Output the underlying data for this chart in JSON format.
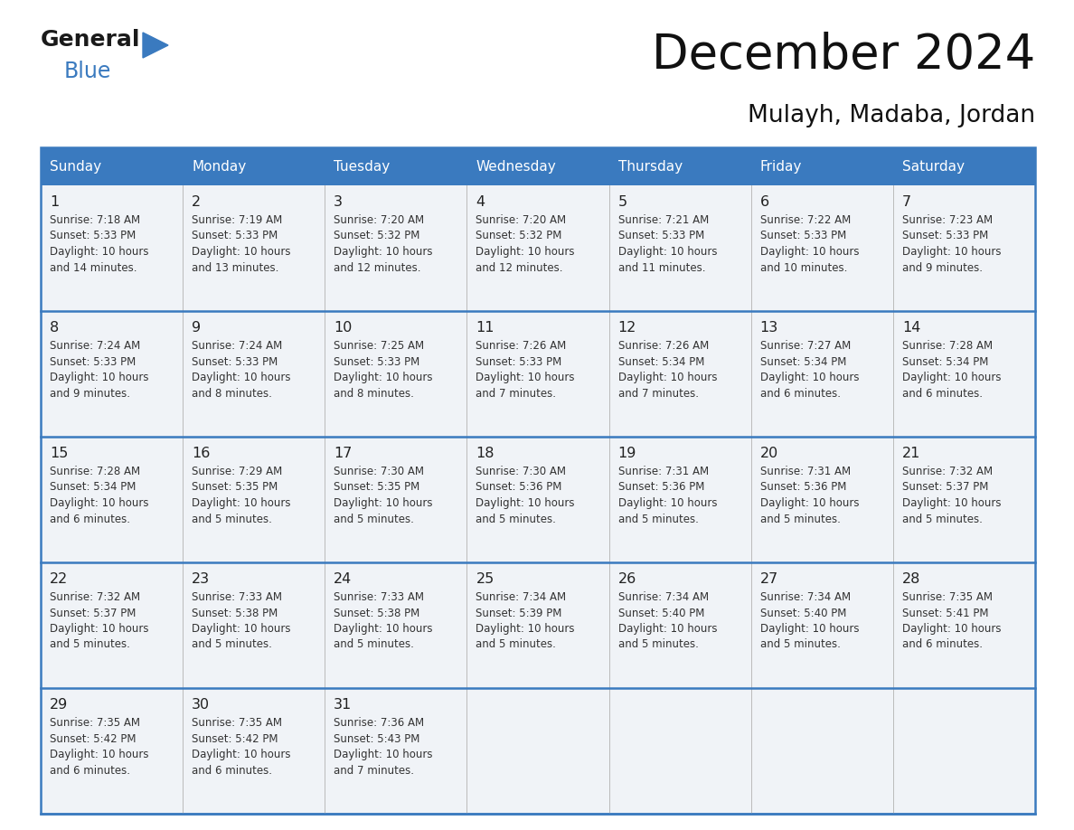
{
  "title": "December 2024",
  "subtitle": "Mulayh, Madaba, Jordan",
  "header_color": "#3a7abf",
  "header_text_color": "#ffffff",
  "border_color": "#3a7abf",
  "row_sep_color": "#3a7abf",
  "col_sep_color": "#bbbbbb",
  "cell_bg_even": "#f0f3f7",
  "cell_bg_odd": "#f0f3f7",
  "text_color": "#333333",
  "day_num_color": "#222222",
  "days_of_week": [
    "Sunday",
    "Monday",
    "Tuesday",
    "Wednesday",
    "Thursday",
    "Friday",
    "Saturday"
  ],
  "day_data": [
    {
      "day": 1,
      "col": 0,
      "row": 0,
      "sunrise": "7:18 AM",
      "sunset": "5:33 PM",
      "daylight_mins": "14"
    },
    {
      "day": 2,
      "col": 1,
      "row": 0,
      "sunrise": "7:19 AM",
      "sunset": "5:33 PM",
      "daylight_mins": "13"
    },
    {
      "day": 3,
      "col": 2,
      "row": 0,
      "sunrise": "7:20 AM",
      "sunset": "5:32 PM",
      "daylight_mins": "12"
    },
    {
      "day": 4,
      "col": 3,
      "row": 0,
      "sunrise": "7:20 AM",
      "sunset": "5:32 PM",
      "daylight_mins": "12"
    },
    {
      "day": 5,
      "col": 4,
      "row": 0,
      "sunrise": "7:21 AM",
      "sunset": "5:33 PM",
      "daylight_mins": "11"
    },
    {
      "day": 6,
      "col": 5,
      "row": 0,
      "sunrise": "7:22 AM",
      "sunset": "5:33 PM",
      "daylight_mins": "10"
    },
    {
      "day": 7,
      "col": 6,
      "row": 0,
      "sunrise": "7:23 AM",
      "sunset": "5:33 PM",
      "daylight_mins": "9"
    },
    {
      "day": 8,
      "col": 0,
      "row": 1,
      "sunrise": "7:24 AM",
      "sunset": "5:33 PM",
      "daylight_mins": "9"
    },
    {
      "day": 9,
      "col": 1,
      "row": 1,
      "sunrise": "7:24 AM",
      "sunset": "5:33 PM",
      "daylight_mins": "8"
    },
    {
      "day": 10,
      "col": 2,
      "row": 1,
      "sunrise": "7:25 AM",
      "sunset": "5:33 PM",
      "daylight_mins": "8"
    },
    {
      "day": 11,
      "col": 3,
      "row": 1,
      "sunrise": "7:26 AM",
      "sunset": "5:33 PM",
      "daylight_mins": "7"
    },
    {
      "day": 12,
      "col": 4,
      "row": 1,
      "sunrise": "7:26 AM",
      "sunset": "5:34 PM",
      "daylight_mins": "7"
    },
    {
      "day": 13,
      "col": 5,
      "row": 1,
      "sunrise": "7:27 AM",
      "sunset": "5:34 PM",
      "daylight_mins": "6"
    },
    {
      "day": 14,
      "col": 6,
      "row": 1,
      "sunrise": "7:28 AM",
      "sunset": "5:34 PM",
      "daylight_mins": "6"
    },
    {
      "day": 15,
      "col": 0,
      "row": 2,
      "sunrise": "7:28 AM",
      "sunset": "5:34 PM",
      "daylight_mins": "6"
    },
    {
      "day": 16,
      "col": 1,
      "row": 2,
      "sunrise": "7:29 AM",
      "sunset": "5:35 PM",
      "daylight_mins": "5"
    },
    {
      "day": 17,
      "col": 2,
      "row": 2,
      "sunrise": "7:30 AM",
      "sunset": "5:35 PM",
      "daylight_mins": "5"
    },
    {
      "day": 18,
      "col": 3,
      "row": 2,
      "sunrise": "7:30 AM",
      "sunset": "5:36 PM",
      "daylight_mins": "5"
    },
    {
      "day": 19,
      "col": 4,
      "row": 2,
      "sunrise": "7:31 AM",
      "sunset": "5:36 PM",
      "daylight_mins": "5"
    },
    {
      "day": 20,
      "col": 5,
      "row": 2,
      "sunrise": "7:31 AM",
      "sunset": "5:36 PM",
      "daylight_mins": "5"
    },
    {
      "day": 21,
      "col": 6,
      "row": 2,
      "sunrise": "7:32 AM",
      "sunset": "5:37 PM",
      "daylight_mins": "5"
    },
    {
      "day": 22,
      "col": 0,
      "row": 3,
      "sunrise": "7:32 AM",
      "sunset": "5:37 PM",
      "daylight_mins": "5"
    },
    {
      "day": 23,
      "col": 1,
      "row": 3,
      "sunrise": "7:33 AM",
      "sunset": "5:38 PM",
      "daylight_mins": "5"
    },
    {
      "day": 24,
      "col": 2,
      "row": 3,
      "sunrise": "7:33 AM",
      "sunset": "5:38 PM",
      "daylight_mins": "5"
    },
    {
      "day": 25,
      "col": 3,
      "row": 3,
      "sunrise": "7:34 AM",
      "sunset": "5:39 PM",
      "daylight_mins": "5"
    },
    {
      "day": 26,
      "col": 4,
      "row": 3,
      "sunrise": "7:34 AM",
      "sunset": "5:40 PM",
      "daylight_mins": "5"
    },
    {
      "day": 27,
      "col": 5,
      "row": 3,
      "sunrise": "7:34 AM",
      "sunset": "5:40 PM",
      "daylight_mins": "5"
    },
    {
      "day": 28,
      "col": 6,
      "row": 3,
      "sunrise": "7:35 AM",
      "sunset": "5:41 PM",
      "daylight_mins": "6"
    },
    {
      "day": 29,
      "col": 0,
      "row": 4,
      "sunrise": "7:35 AM",
      "sunset": "5:42 PM",
      "daylight_mins": "6"
    },
    {
      "day": 30,
      "col": 1,
      "row": 4,
      "sunrise": "7:35 AM",
      "sunset": "5:42 PM",
      "daylight_mins": "6"
    },
    {
      "day": 31,
      "col": 2,
      "row": 4,
      "sunrise": "7:36 AM",
      "sunset": "5:43 PM",
      "daylight_mins": "7"
    }
  ],
  "logo_general_color": "#1a1a1a",
  "logo_blue_color": "#3a7abf",
  "logo_triangle_color": "#3a7abf"
}
